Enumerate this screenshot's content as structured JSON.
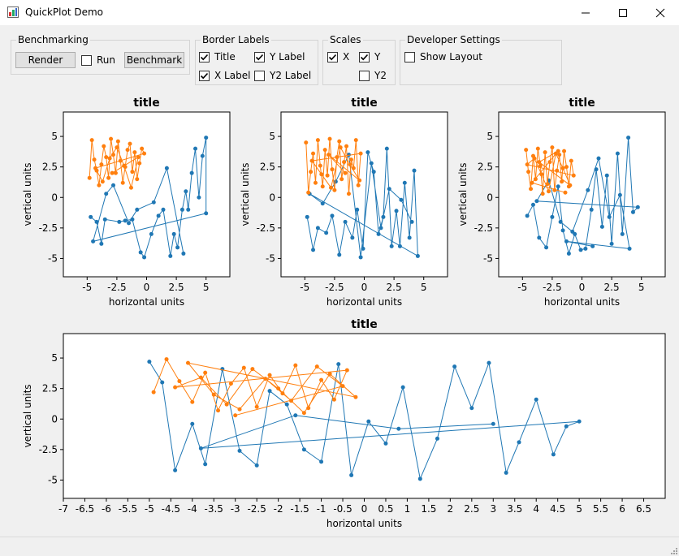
{
  "window": {
    "title": "QuickPlot Demo"
  },
  "benchmarking": {
    "label": "Benchmarking",
    "render_label": "Render",
    "run_label": "Run",
    "run_checked": false,
    "benchmark_label": "Benchmark"
  },
  "border_labels": {
    "label": "Border Labels",
    "items": [
      {
        "label": "Title",
        "checked": true
      },
      {
        "label": "Y Label",
        "checked": true
      },
      {
        "label": "X Label",
        "checked": true
      },
      {
        "label": "Y2 Label",
        "checked": false
      }
    ]
  },
  "scales": {
    "label": "Scales",
    "items": [
      {
        "label": "X",
        "checked": true
      },
      {
        "label": "Y",
        "checked": true
      },
      {
        "label": "Y2",
        "checked": false
      }
    ]
  },
  "developer_settings": {
    "label": "Developer Settings",
    "show_layout_label": "Show Layout",
    "show_layout_checked": false
  },
  "colors": {
    "series1": "#1f77b4",
    "series2": "#ff7f0e"
  },
  "chart_data": [
    {
      "type": "scatter",
      "title": "title",
      "xlabel": "horizontal units",
      "ylabel": "vertical units",
      "xlim": [
        -7,
        7
      ],
      "ylim": [
        -6.5,
        7
      ],
      "xticks": [
        -5,
        -2.5,
        0,
        2.5,
        5
      ],
      "xtick_labels": [
        "-5",
        "-2.5",
        "0",
        "2.5",
        "5"
      ],
      "yticks": [
        5,
        2.5,
        0,
        -2.5,
        -5
      ],
      "ytick_labels": [
        "5",
        "2.5",
        "0",
        "-2.5",
        "-5"
      ],
      "series": [
        {
          "color": "#1f77b4",
          "x": [
            -4.7,
            -4.2,
            -3.8,
            -3.5,
            -2.3,
            -1.8,
            -1.2,
            -0.5,
            -0.2,
            0.4,
            1.0,
            1.4,
            2.0,
            2.3,
            2.6,
            3.0,
            3.3,
            3.5,
            3.8,
            4.1,
            4.4,
            4.7,
            5.0,
            5.0,
            -4.5,
            -3.4,
            -2.8,
            -1.5,
            -0.8,
            0.6,
            1.7,
            3.1
          ],
          "y": [
            -1.6,
            -2.0,
            -3.8,
            -1.8,
            -2.0,
            -1.9,
            -1.8,
            -4.5,
            -4.9,
            -3.0,
            -1.5,
            -1.0,
            -4.8,
            -3.0,
            -4.1,
            -1.0,
            0.5,
            -1.0,
            2.0,
            4.0,
            0.0,
            3.4,
            4.9,
            -1.3,
            -3.6,
            0.3,
            1.0,
            -2.1,
            -1.0,
            -0.4,
            2.4,
            -4.6
          ]
        },
        {
          "color": "#ff7f0e",
          "x": [
            -4.8,
            -4.6,
            -4.4,
            -4.2,
            -4.0,
            -3.8,
            -3.6,
            -3.4,
            -3.2,
            -3.0,
            -2.8,
            -2.6,
            -2.4,
            -2.2,
            -2.0,
            -1.8,
            -1.6,
            -1.4,
            -1.2,
            -1.0,
            -0.8,
            -0.6,
            -0.4,
            -0.2,
            -4.3,
            -3.7,
            -3.1,
            -2.5,
            -1.9,
            -1.3,
            -0.7,
            -2.9
          ],
          "y": [
            1.6,
            4.7,
            3.1,
            2.2,
            1.0,
            2.7,
            4.2,
            3.3,
            1.6,
            4.8,
            3.5,
            2.0,
            4.6,
            3.0,
            1.2,
            2.5,
            3.9,
            4.4,
            2.1,
            3.7,
            1.5,
            2.8,
            4.0,
            3.6,
            2.4,
            1.3,
            3.2,
            4.1,
            2.6,
            0.8,
            3.3,
            2.0
          ]
        }
      ]
    },
    {
      "type": "scatter",
      "title": "title",
      "xlabel": "horizontal units",
      "ylabel": "vertical units",
      "xlim": [
        -7,
        7
      ],
      "ylim": [
        -6.5,
        7
      ],
      "xticks": [
        -5,
        -2.5,
        0,
        2.5,
        5
      ],
      "xtick_labels": [
        "-5",
        "-2.5",
        "0",
        "2.5",
        "5"
      ],
      "yticks": [
        5,
        2.5,
        0,
        -2.5,
        -5
      ],
      "ytick_labels": [
        "5",
        "2.5",
        "0",
        "-2.5",
        "-5"
      ],
      "series": [
        {
          "color": "#1f77b4",
          "x": [
            -4.8,
            -4.3,
            -3.9,
            -3.2,
            -2.7,
            -2.1,
            -1.6,
            -1.0,
            -0.6,
            -0.1,
            0.3,
            0.8,
            1.2,
            1.6,
            1.9,
            2.3,
            2.7,
            3.0,
            3.4,
            3.8,
            4.2,
            4.5,
            -4.6,
            -3.5,
            -2.4,
            -1.3,
            -0.3,
            0.6,
            1.4,
            2.1,
            3.1,
            4.0
          ],
          "y": [
            -1.6,
            -4.3,
            -2.5,
            -2.9,
            -1.5,
            -4.7,
            -2.0,
            -3.3,
            -1.0,
            -4.2,
            3.7,
            2.1,
            -3.0,
            -1.6,
            4.0,
            -4.0,
            -1.1,
            -4.0,
            1.2,
            -3.3,
            2.2,
            -4.8,
            0.3,
            -0.5,
            1.3,
            3.5,
            -4.9,
            2.8,
            -2.5,
            0.7,
            -0.2,
            -2.0
          ]
        },
        {
          "color": "#ff7f0e",
          "x": [
            -4.9,
            -4.7,
            -4.5,
            -4.3,
            -4.1,
            -3.9,
            -3.7,
            -3.5,
            -3.3,
            -3.1,
            -2.9,
            -2.7,
            -2.5,
            -2.3,
            -2.1,
            -1.9,
            -1.7,
            -1.5,
            -1.3,
            -1.1,
            -0.9,
            -0.7,
            -0.5,
            -0.3,
            -4.4,
            -3.6,
            -2.8,
            -2.0,
            -1.2,
            -0.4,
            -3.0,
            -1.6
          ],
          "y": [
            4.5,
            0.4,
            2.1,
            3.6,
            1.2,
            4.7,
            2.6,
            0.9,
            3.9,
            1.8,
            4.8,
            2.3,
            0.6,
            3.3,
            4.6,
            1.5,
            2.9,
            4.2,
            0.3,
            3.1,
            2.4,
            4.7,
            1.0,
            3.6,
            3.0,
            1.9,
            0.8,
            4.1,
            2.7,
            1.4,
            3.5,
            2.0
          ]
        }
      ]
    },
    {
      "type": "scatter",
      "title": "title",
      "xlabel": "horizontal units",
      "ylabel": "vertical units",
      "xlim": [
        -7,
        7
      ],
      "ylim": [
        -6.5,
        7
      ],
      "xticks": [
        -5,
        -2.5,
        0,
        2.5,
        5
      ],
      "xtick_labels": [
        "-5",
        "-2.5",
        "0",
        "2.5",
        "5"
      ],
      "yticks": [
        5,
        2.5,
        0,
        -2.5,
        -5
      ],
      "ytick_labels": [
        "5",
        "2.5",
        "0",
        "-2.5",
        "-5"
      ],
      "series": [
        {
          "color": "#1f77b4",
          "x": [
            -4.6,
            -4.1,
            -3.6,
            -3.0,
            -2.5,
            -2.0,
            -1.6,
            -1.1,
            -0.6,
            -0.1,
            0.3,
            0.8,
            1.2,
            1.7,
            2.1,
            2.5,
            3.0,
            3.4,
            3.9,
            4.3,
            4.7,
            -3.8,
            -2.8,
            -1.8,
            -0.8,
            0.5,
            1.4,
            2.3,
            3.2,
            4.0,
            -1.3,
            0.9
          ],
          "y": [
            -1.5,
            -0.6,
            -3.3,
            -4.1,
            -1.6,
            0.9,
            -2.7,
            -4.6,
            -3.0,
            -4.3,
            -4.2,
            -1.0,
            2.3,
            -2.4,
            1.8,
            -3.8,
            3.6,
            -3.0,
            4.9,
            -1.2,
            -0.8,
            -0.3,
            1.4,
            -2.0,
            -2.8,
            0.6,
            3.2,
            -1.6,
            0.2,
            -4.2,
            -3.6,
            -4.0
          ]
        },
        {
          "color": "#ff7f0e",
          "x": [
            -4.7,
            -4.5,
            -4.3,
            -4.1,
            -3.9,
            -3.7,
            -3.5,
            -3.3,
            -3.1,
            -2.9,
            -2.7,
            -2.5,
            -2.3,
            -2.1,
            -1.9,
            -1.7,
            -1.5,
            -1.3,
            -1.1,
            -0.9,
            -0.7,
            -4.6,
            -4.0,
            -3.4,
            -2.8,
            -2.2,
            -1.6,
            -1.0,
            -3.6,
            -2.0,
            -4.2,
            -1.4
          ],
          "y": [
            3.9,
            2.1,
            0.7,
            3.4,
            1.5,
            4.0,
            2.6,
            0.3,
            3.7,
            1.1,
            2.9,
            4.1,
            0.6,
            2.2,
            3.5,
            1.3,
            3.8,
            2.5,
            0.9,
            3.0,
            1.8,
            2.7,
            3.2,
            1.9,
            0.5,
            3.6,
            2.4,
            1.0,
            2.9,
            3.8,
            1.2,
            0.4
          ]
        }
      ]
    },
    {
      "type": "scatter",
      "title": "title",
      "xlabel": "horizontal units",
      "ylabel": "vertical units",
      "xlim": [
        -7,
        7
      ],
      "ylim": [
        -6.5,
        7
      ],
      "xticks": [
        -7,
        -6.5,
        -6,
        -5.5,
        -5,
        -4.5,
        -4,
        -3.5,
        -3,
        -2.5,
        -2,
        -1.5,
        -1,
        -0.5,
        0,
        0.5,
        1,
        1.5,
        2,
        2.5,
        3,
        3.5,
        4,
        4.5,
        5,
        5.5,
        6,
        6.5
      ],
      "xtick_labels": [
        "-7",
        "-6.5",
        "-6",
        "-5.5",
        "-5",
        "-4.5",
        "-4",
        "-3.5",
        "-3",
        "-2.5",
        "-2",
        "-1.5",
        "-1",
        "-0.5",
        "0",
        "0.5",
        "1",
        "1.5",
        "2",
        "2.5",
        "3",
        "3.5",
        "4",
        "4.5",
        "5",
        "5.5",
        "6",
        "6.5"
      ],
      "yticks": [
        5,
        2.5,
        0,
        -2.5,
        -5
      ],
      "ytick_labels": [
        "5",
        "2.5",
        "0",
        "-2.5",
        "-5"
      ],
      "series": [
        {
          "color": "#1f77b4",
          "x": [
            -5.0,
            -4.7,
            -4.4,
            -4.0,
            -3.7,
            -3.3,
            -2.9,
            -2.5,
            -2.2,
            -1.8,
            -1.4,
            -1.0,
            -0.6,
            -0.3,
            0.1,
            0.5,
            0.9,
            1.3,
            1.7,
            2.1,
            2.5,
            2.9,
            3.3,
            3.6,
            4.0,
            4.4,
            4.7,
            5.0,
            -3.8,
            -1.6,
            0.8,
            3.0
          ],
          "y": [
            4.7,
            3.0,
            -4.2,
            -0.4,
            -3.7,
            4.1,
            -2.6,
            -3.8,
            2.3,
            1.2,
            -2.5,
            -3.5,
            4.5,
            -4.6,
            -0.2,
            -2.0,
            2.6,
            -4.9,
            -1.6,
            4.3,
            0.9,
            4.6,
            -4.4,
            -1.9,
            1.6,
            -2.9,
            -0.6,
            -0.2,
            -2.4,
            0.3,
            -0.8,
            -0.4
          ]
        },
        {
          "color": "#ff7f0e",
          "x": [
            -4.9,
            -4.6,
            -4.3,
            -4.0,
            -3.7,
            -3.4,
            -3.1,
            -2.8,
            -2.5,
            -2.2,
            -1.9,
            -1.6,
            -1.3,
            -1.0,
            -0.7,
            -0.4,
            -4.4,
            -3.8,
            -3.2,
            -2.6,
            -2.0,
            -1.4,
            -0.8,
            -0.2,
            -4.1,
            -3.5,
            -2.9,
            -2.3,
            -1.7,
            -1.1,
            -0.5,
            -3.0
          ],
          "y": [
            2.2,
            4.9,
            3.1,
            1.4,
            3.8,
            0.7,
            2.9,
            4.2,
            1.0,
            3.6,
            2.1,
            4.4,
            0.9,
            3.2,
            1.6,
            4.0,
            2.6,
            3.4,
            1.2,
            4.1,
            2.5,
            0.5,
            3.7,
            1.8,
            4.6,
            2.0,
            0.8,
            3.3,
            1.5,
            4.3,
            2.7,
            0.3
          ]
        }
      ]
    }
  ]
}
